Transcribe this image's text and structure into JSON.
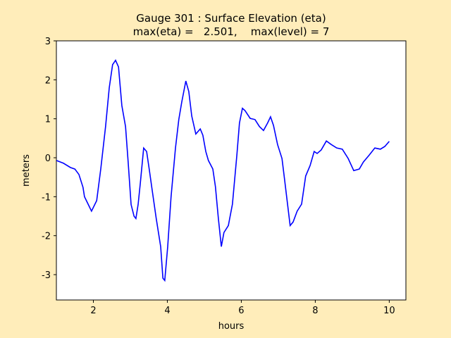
{
  "chart_data": {
    "type": "line",
    "title": "Gauge 301 : Surface Elevation (eta)",
    "subtitle": "max(eta) =   2.501,    max(level) = 7",
    "xlabel": "hours",
    "ylabel": "meters",
    "xlim": [
      1,
      10.45
    ],
    "ylim": [
      -3.65,
      3
    ],
    "xticks": [
      2,
      4,
      6,
      8,
      10
    ],
    "yticks": [
      -3,
      -2,
      -1,
      0,
      1,
      2,
      3
    ],
    "series": [
      {
        "color": "#0000ff",
        "x": [
          1.0,
          1.19,
          1.38,
          1.5,
          1.61,
          1.72,
          1.76,
          1.95,
          2.09,
          2.2,
          2.33,
          2.43,
          2.52,
          2.6,
          2.68,
          2.77,
          2.87,
          2.94,
          3.02,
          3.1,
          3.15,
          3.21,
          3.27,
          3.36,
          3.44,
          3.51,
          3.59,
          3.7,
          3.82,
          3.88,
          3.93,
          4.01,
          4.1,
          4.22,
          4.31,
          4.39,
          4.5,
          4.58,
          4.66,
          4.77,
          4.89,
          4.96,
          5.04,
          5.11,
          5.23,
          5.3,
          5.38,
          5.46,
          5.53,
          5.65,
          5.76,
          5.88,
          5.95,
          6.03,
          6.1,
          6.24,
          6.37,
          6.49,
          6.6,
          6.71,
          6.79,
          6.87,
          6.98,
          7.1,
          7.17,
          7.25,
          7.32,
          7.4,
          7.51,
          7.63,
          7.74,
          7.86,
          7.97,
          8.05,
          8.16,
          8.3,
          8.43,
          8.58,
          8.73,
          8.89,
          9.04,
          9.19,
          9.3,
          9.46,
          9.61,
          9.76,
          9.88,
          10.0
        ],
        "values": [
          -0.07,
          -0.14,
          -0.25,
          -0.29,
          -0.43,
          -0.76,
          -1.0,
          -1.37,
          -1.1,
          -0.29,
          0.8,
          1.8,
          2.39,
          2.5,
          2.33,
          1.34,
          0.8,
          -0.1,
          -1.2,
          -1.5,
          -1.56,
          -1.2,
          -0.65,
          0.25,
          0.16,
          -0.29,
          -0.83,
          -1.56,
          -2.28,
          -3.09,
          -3.15,
          -2.28,
          -1.01,
          0.25,
          0.98,
          1.43,
          1.97,
          1.7,
          1.07,
          0.61,
          0.74,
          0.58,
          0.16,
          -0.07,
          -0.29,
          -0.74,
          -1.56,
          -2.28,
          -1.92,
          -1.74,
          -1.19,
          0.07,
          0.89,
          1.27,
          1.21,
          1.01,
          0.98,
          0.8,
          0.7,
          0.89,
          1.05,
          0.83,
          0.34,
          -0.02,
          -0.56,
          -1.19,
          -1.74,
          -1.65,
          -1.37,
          -1.19,
          -0.47,
          -0.2,
          0.16,
          0.11,
          0.2,
          0.43,
          0.34,
          0.25,
          0.22,
          -0.02,
          -0.33,
          -0.29,
          -0.11,
          0.07,
          0.25,
          0.22,
          0.29,
          0.42
        ]
      }
    ]
  }
}
